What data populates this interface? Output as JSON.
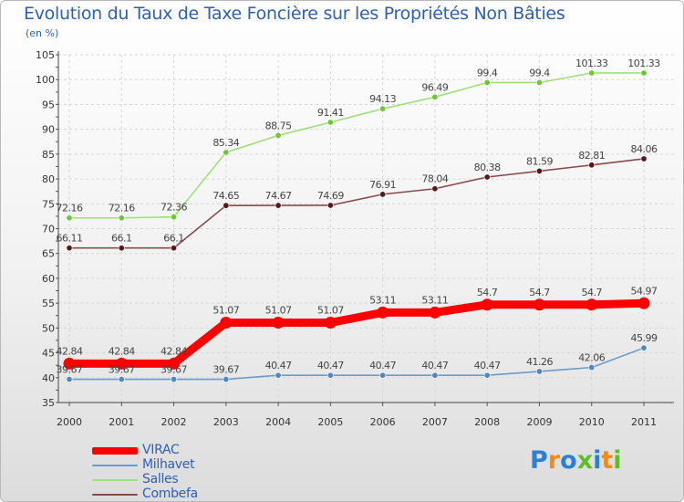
{
  "chart_data": {
    "type": "line",
    "title": "Evolution du Taux de Taxe Foncière sur les Propriétés Non Bâties",
    "subtitle": "(en %)",
    "categories": [
      "2000",
      "2001",
      "2002",
      "2003",
      "2004",
      "2005",
      "2006",
      "2007",
      "2008",
      "2009",
      "2010",
      "2011"
    ],
    "ylim": [
      35,
      105
    ],
    "yticks": [
      35,
      40,
      45,
      50,
      55,
      60,
      65,
      70,
      75,
      80,
      85,
      90,
      95,
      100,
      105
    ],
    "series": [
      {
        "name": "Milhavet",
        "color": "#6b9bc8",
        "marker_color": "#4f87c0",
        "labels": [
          "39.67",
          "39.67",
          "39.67",
          "39.67",
          "40.47",
          "40.47",
          "40.47",
          "40.47",
          "40.47",
          "41.26",
          "42.06",
          "45.99"
        ],
        "values": [
          39.67,
          39.67,
          39.67,
          39.67,
          40.47,
          40.47,
          40.47,
          40.47,
          40.47,
          41.26,
          42.06,
          45.99
        ]
      },
      {
        "name": "Salles",
        "color": "#9fe07a",
        "marker_color": "#6fc63a",
        "labels": [
          "72.16",
          "72.16",
          "72.36",
          "85.34",
          "88.75",
          "91.41",
          "94.13",
          "96.49",
          "99.4",
          "99.4",
          "101.33",
          "101.33"
        ],
        "values": [
          72.16,
          72.16,
          72.36,
          85.34,
          88.75,
          91.41,
          94.13,
          96.49,
          99.4,
          99.4,
          101.33,
          101.33
        ]
      },
      {
        "name": "Combefa",
        "color": "#8b4a4a",
        "marker_color": "#5a1818",
        "labels": [
          "66.11",
          "66.1",
          "66.1",
          "74.65",
          "74.67",
          "74.69",
          "76.91",
          "78.04",
          "80.38",
          "81.59",
          "82.81",
          "84.06"
        ],
        "values": [
          66.11,
          66.1,
          66.1,
          74.65,
          74.67,
          74.69,
          76.91,
          78.04,
          80.38,
          81.59,
          82.81,
          84.06
        ]
      },
      {
        "name": "VIRAC",
        "color": "#ff0000",
        "marker_color": "#ff0000",
        "labels": [
          "42.84",
          "42.84",
          "42.84",
          "51.07",
          "51.07",
          "51.07",
          "53.11",
          "53.11",
          "54.7",
          "54.7",
          "54.7",
          "54.97"
        ],
        "values": [
          42.84,
          42.84,
          42.84,
          51.07,
          51.07,
          51.07,
          53.11,
          53.11,
          54.7,
          54.7,
          54.7,
          54.97
        ]
      }
    ],
    "legend": [
      {
        "name": "VIRAC",
        "color": "#ff0000"
      },
      {
        "name": "Milhavet",
        "color": "#6b9bc8"
      },
      {
        "name": "Salles",
        "color": "#9fe07a"
      },
      {
        "name": "Combefa",
        "color": "#8b4a4a"
      }
    ],
    "legend_position": "bottom-left"
  },
  "logo": {
    "letters": [
      "P",
      "r",
      "o",
      "x",
      "i",
      "t",
      "i"
    ],
    "colors": [
      "#2b7fd6",
      "#f08a1c",
      "#2b7fd6",
      "#5bbf2a",
      "#2b7fd6",
      "#f08a1c",
      "#5bbf2a"
    ]
  }
}
